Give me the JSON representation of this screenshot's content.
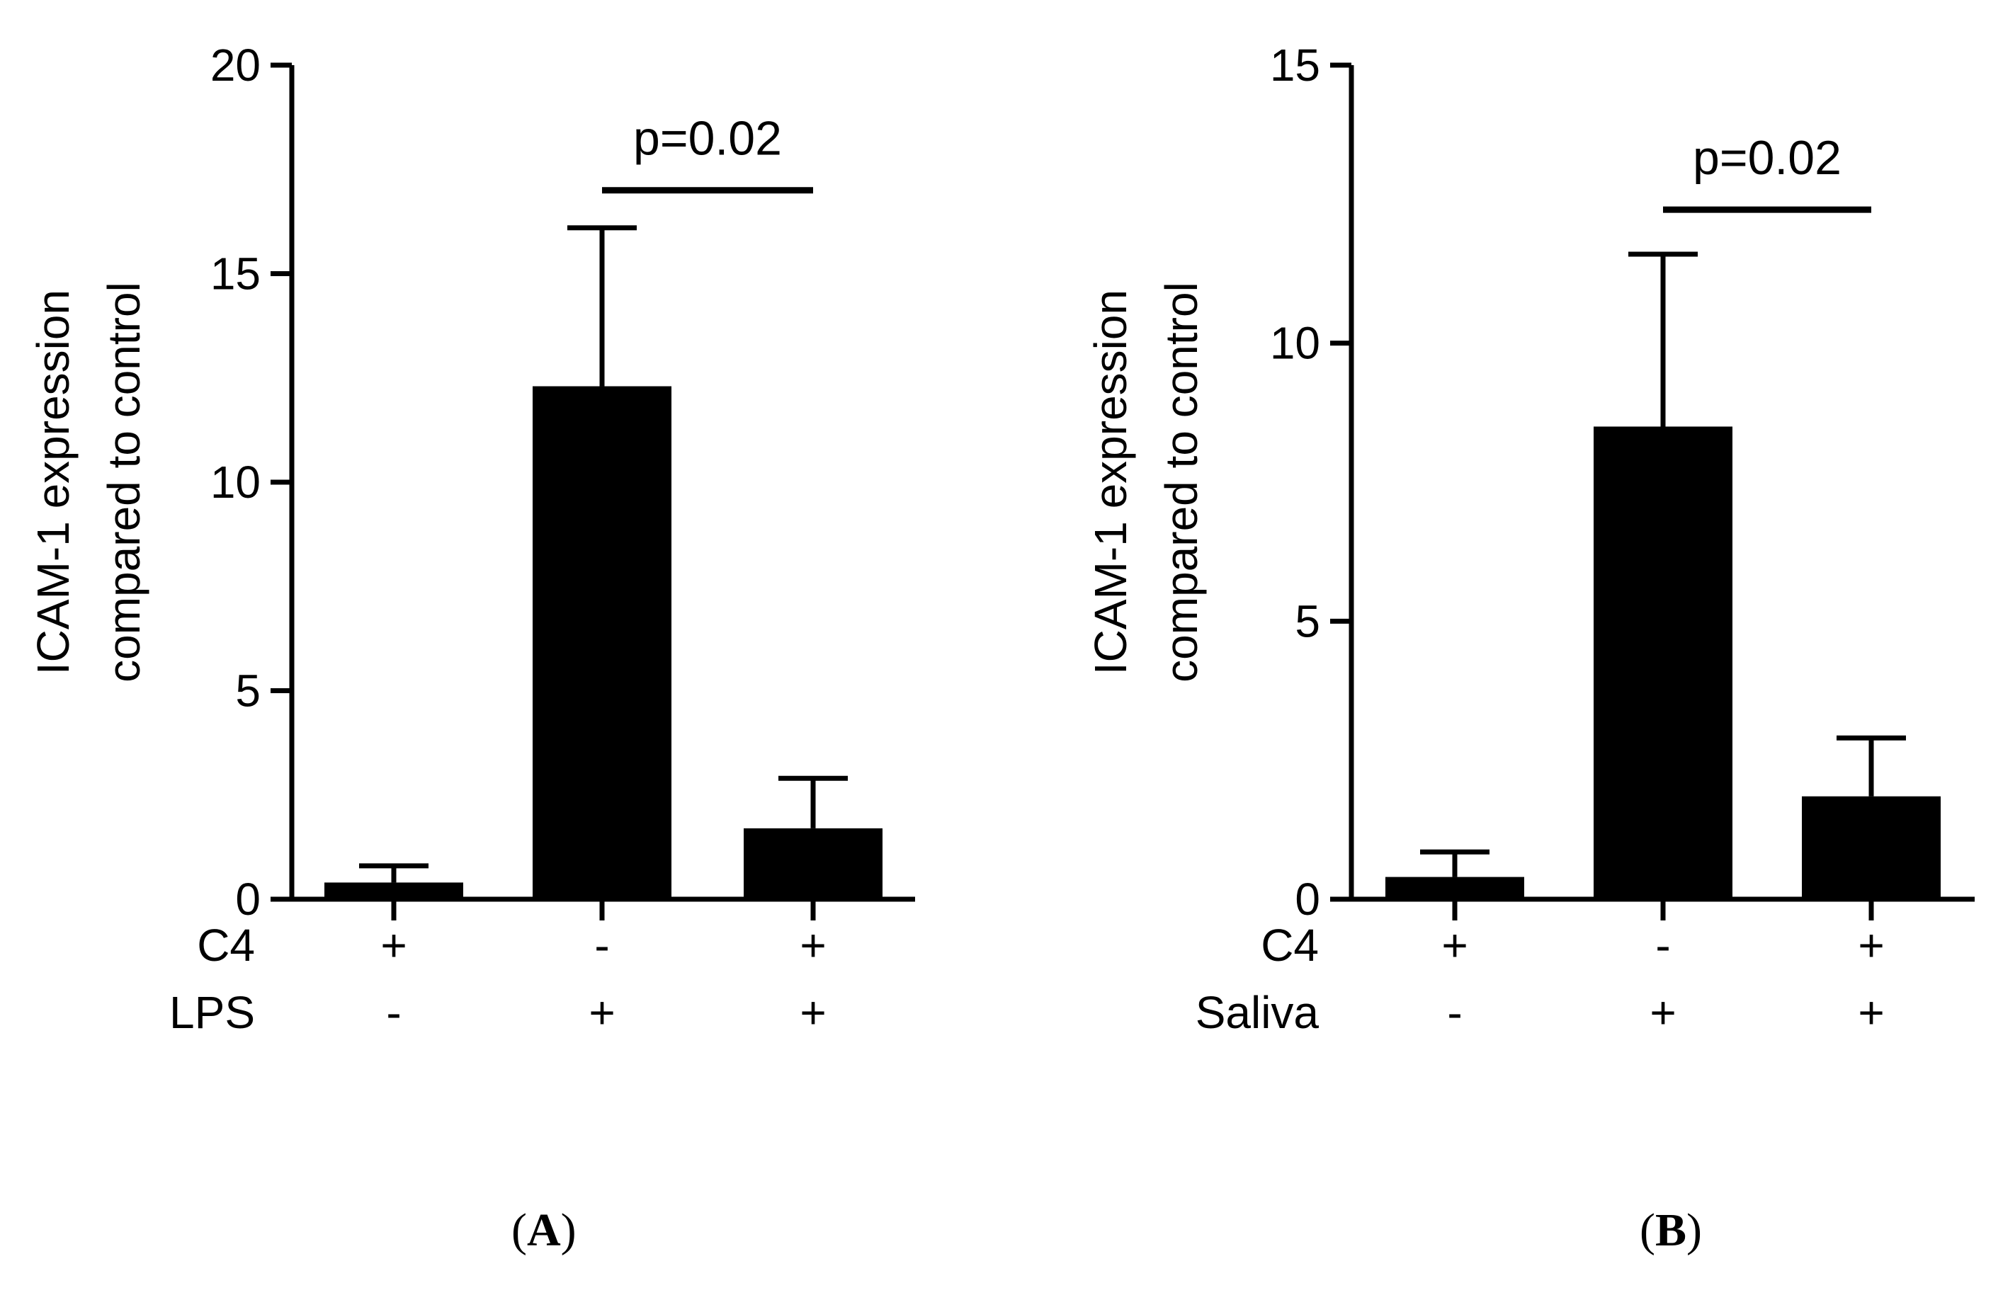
{
  "colors": {
    "bar": "#000000",
    "axis": "#000000",
    "text": "#000000"
  },
  "chart_data": [
    {
      "panel": "A",
      "type": "bar",
      "ylabel_lines": [
        "ICAM-1 expression",
        "compared to control"
      ],
      "ylim": [
        0,
        20
      ],
      "yticks": [
        0,
        5,
        10,
        15,
        20
      ],
      "row_labels": [
        "C4",
        "LPS"
      ],
      "groups": [
        {
          "signs": [
            "+",
            "-"
          ],
          "value": 0.4,
          "error": 0.8
        },
        {
          "signs": [
            "-",
            "+"
          ],
          "value": 12.3,
          "error": 16.1
        },
        {
          "signs": [
            "+",
            "+"
          ],
          "value": 1.7,
          "error": 2.9
        }
      ],
      "significance": {
        "from_group": 1,
        "to_group": 2,
        "label": "p=0.02",
        "y": 17
      }
    },
    {
      "panel": "B",
      "type": "bar",
      "ylabel_lines": [
        "ICAM-1 expression",
        "compared to control"
      ],
      "ylim": [
        0,
        15
      ],
      "yticks": [
        0,
        5,
        10,
        15
      ],
      "row_labels": [
        "C4",
        "Saliva"
      ],
      "groups": [
        {
          "signs": [
            "+",
            "-"
          ],
          "value": 0.4,
          "error": 0.85
        },
        {
          "signs": [
            "-",
            "+"
          ],
          "value": 8.5,
          "error": 11.6
        },
        {
          "signs": [
            "+",
            "+"
          ],
          "value": 1.85,
          "error": 2.9
        }
      ],
      "significance": {
        "from_group": 1,
        "to_group": 2,
        "label": "p=0.02",
        "y": 12.4
      }
    }
  ],
  "figure_labels": [
    "A",
    "B"
  ]
}
